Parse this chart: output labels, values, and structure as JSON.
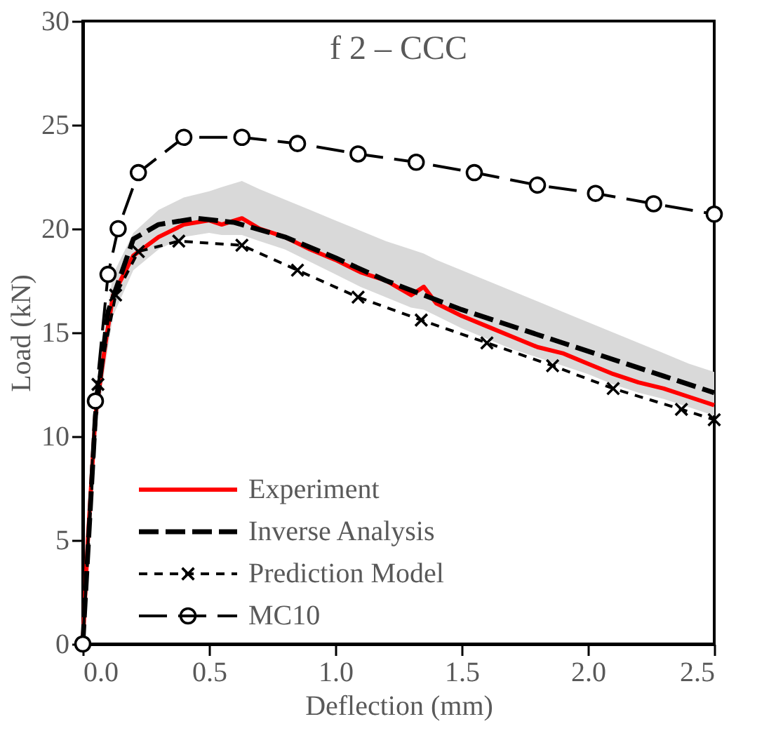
{
  "chart_data": {
    "type": "line",
    "title": "f 2 – CCC",
    "xlabel": "Deflection (mm)",
    "ylabel": "Load (kN)",
    "xlim": [
      0,
      2.5
    ],
    "ylim": [
      0,
      30
    ],
    "xticks": [
      {
        "value": 0,
        "label": "0.0"
      },
      {
        "value": 0.5,
        "label": "0.5"
      },
      {
        "value": 1,
        "label": "1.0"
      },
      {
        "value": 1.5,
        "label": "1.5"
      },
      {
        "value": 2,
        "label": "2.0"
      },
      {
        "value": 2.5,
        "label": "2.5"
      }
    ],
    "yticks": [
      0,
      5,
      10,
      15,
      20,
      25,
      30
    ],
    "grid": false,
    "legend": "bottom left",
    "series": [
      {
        "name": "Experiment",
        "color": "#ff0000",
        "line_style": "solid",
        "marker": "none",
        "x": [
          0,
          0.02,
          0.05,
          0.09,
          0.12,
          0.2,
          0.3,
          0.4,
          0.5,
          0.55,
          0.63,
          0.7,
          0.8,
          0.9,
          1.0,
          1.1,
          1.2,
          1.3,
          1.35,
          1.4,
          1.5,
          1.6,
          1.7,
          1.8,
          1.9,
          2.0,
          2.1,
          2.2,
          2.3,
          2.4,
          2.5
        ],
        "values": [
          0,
          5,
          11,
          14.5,
          16.8,
          18.7,
          19.6,
          20.2,
          20.4,
          20.2,
          20.5,
          20.0,
          19.6,
          19.0,
          18.5,
          17.9,
          17.5,
          16.8,
          17.2,
          16.4,
          15.8,
          15.3,
          14.8,
          14.3,
          14.0,
          13.5,
          13.0,
          12.6,
          12.3,
          11.9,
          11.5
        ],
        "lower": [
          0,
          4,
          10,
          13.5,
          15.8,
          18.0,
          19.0,
          19.6,
          19.8,
          19.7,
          19.7,
          19.4,
          19.0,
          18.4,
          17.8,
          17.2,
          16.7,
          16.2,
          16.1,
          15.8,
          15.2,
          14.7,
          14.2,
          13.8,
          13.4,
          13.0,
          12.5,
          12.1,
          11.8,
          11.4,
          11.0
        ],
        "upper": [
          0,
          6,
          12,
          15.5,
          17.8,
          19.8,
          20.9,
          21.5,
          21.8,
          22.0,
          22.3,
          21.9,
          21.4,
          20.9,
          20.4,
          19.9,
          19.4,
          19.0,
          18.8,
          18.5,
          18.0,
          17.5,
          17.0,
          16.5,
          16.0,
          15.5,
          15.0,
          14.5,
          14.0,
          13.5,
          13.1
        ]
      },
      {
        "name": "Inverse Analysis",
        "color": "#000000",
        "line_style": "dashed",
        "marker": "none",
        "x": [
          0,
          0.05,
          0.1,
          0.2,
          0.3,
          0.45,
          0.6,
          0.8,
          1.0,
          1.2,
          1.5,
          1.8,
          2.1,
          2.3,
          2.5
        ],
        "values": [
          0,
          11,
          16,
          19.5,
          20.2,
          20.5,
          20.3,
          19.6,
          18.6,
          17.5,
          16.1,
          14.9,
          13.7,
          12.9,
          12.1
        ]
      },
      {
        "name": "Prediction Model",
        "color": "#000000",
        "line_style": "dashed",
        "marker": "cross",
        "x": [
          0,
          0.06,
          0.13,
          0.22,
          0.38,
          0.63,
          0.85,
          1.09,
          1.34,
          1.6,
          1.86,
          2.1,
          2.37,
          2.5
        ],
        "values": [
          0,
          12.5,
          16.8,
          18.9,
          19.4,
          19.2,
          18.0,
          16.7,
          15.6,
          14.5,
          13.4,
          12.3,
          11.3,
          10.8
        ]
      },
      {
        "name": "MC10",
        "color": "#000000",
        "line_style": "dashed",
        "marker": "circle",
        "x": [
          0,
          0.05,
          0.1,
          0.14,
          0.22,
          0.4,
          0.63,
          0.85,
          1.09,
          1.32,
          1.55,
          1.8,
          2.03,
          2.26,
          2.5
        ],
        "values": [
          0,
          11.7,
          17.8,
          20,
          22.7,
          24.4,
          24.4,
          24.1,
          23.6,
          23.2,
          22.7,
          22.1,
          21.7,
          21.2,
          20.7
        ]
      }
    ]
  }
}
